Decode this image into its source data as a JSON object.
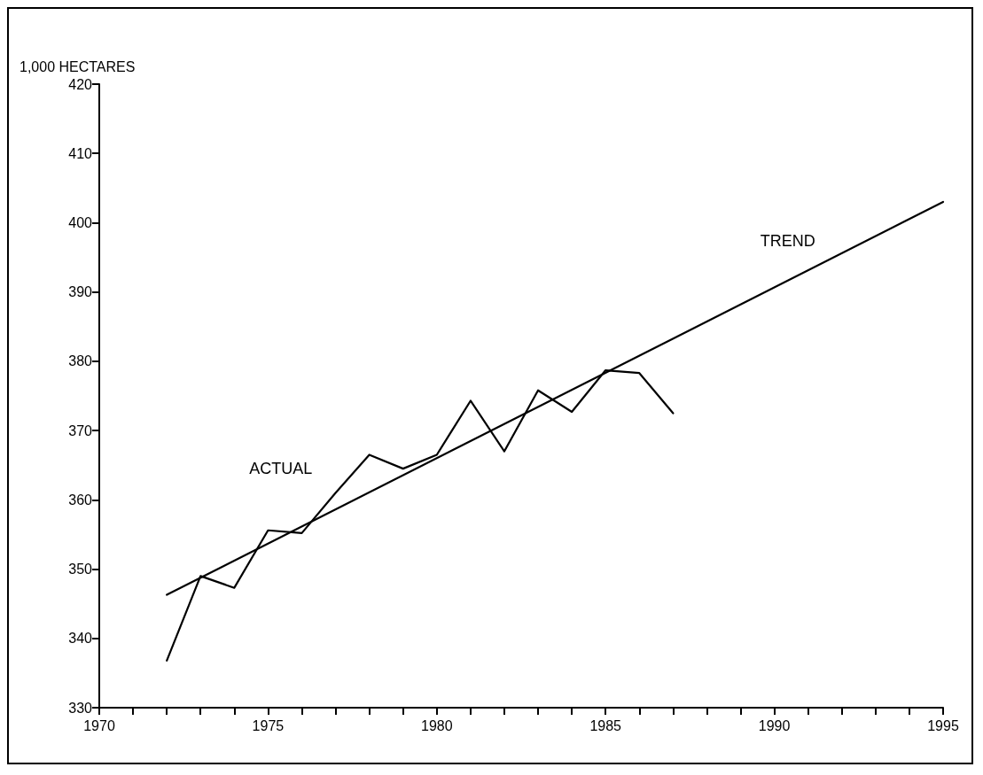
{
  "chart_data": {
    "type": "line",
    "ylabel": "1,000 HECTARES",
    "xlim": [
      1970,
      1995
    ],
    "xticks": [
      1970,
      {
        "value": 1971,
        "label": null
      },
      {
        "value": 1972,
        "label": null
      },
      {
        "value": 1973,
        "label": null
      },
      {
        "value": 1974,
        "label": null
      },
      1975,
      {
        "value": 1976,
        "label": null
      },
      {
        "value": 1977,
        "label": null
      },
      {
        "value": 1978,
        "label": null
      },
      {
        "value": 1979,
        "label": null
      },
      1980,
      {
        "value": 1981,
        "label": null
      },
      {
        "value": 1982,
        "label": null
      },
      {
        "value": 1983,
        "label": null
      },
      {
        "value": 1984,
        "label": null
      },
      1985,
      {
        "value": 1986,
        "label": null
      },
      {
        "value": 1987,
        "label": null
      },
      {
        "value": 1988,
        "label": null
      },
      {
        "value": 1989,
        "label": null
      },
      1990,
      {
        "value": 1991,
        "label": null
      },
      {
        "value": 1992,
        "label": null
      },
      {
        "value": 1993,
        "label": null
      },
      {
        "value": 1994,
        "label": null
      },
      1995
    ],
    "ylim": [
      330,
      420
    ],
    "yticks": [
      330,
      340,
      350,
      360,
      370,
      380,
      390,
      400,
      410,
      420
    ],
    "series": [
      {
        "name": "ACTUAL",
        "color": "#000000",
        "x": [
          1972,
          1973,
          1974,
          1975,
          1976,
          1977,
          1978,
          1979,
          1980,
          1981,
          1982,
          1983,
          1984,
          1985,
          1986,
          1987
        ],
        "values": [
          336.8,
          349.0,
          347.3,
          355.6,
          355.2,
          361,
          366.5,
          364.5,
          366.5,
          374.3,
          367.0,
          375.8,
          372.7,
          378.7,
          378.3,
          372.5
        ]
      },
      {
        "name": "TREND",
        "color": "#000000",
        "x": [
          1972,
          1995
        ],
        "values": [
          346.3,
          403
        ]
      }
    ],
    "grid": false,
    "legend": false,
    "marker": "none",
    "line_style": "solid"
  }
}
